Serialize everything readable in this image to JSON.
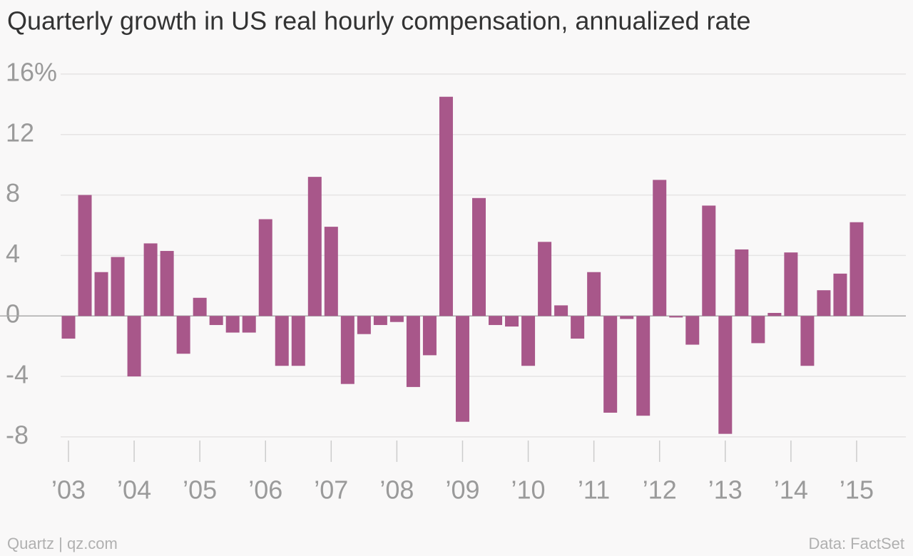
{
  "chart_data": {
    "type": "bar",
    "title": "Quarterly growth in US real hourly compensation, annualized rate",
    "categories": [
      "’03",
      null,
      null,
      null,
      "’04",
      null,
      null,
      null,
      "’05",
      null,
      null,
      null,
      "’06",
      null,
      null,
      null,
      "’07",
      null,
      null,
      null,
      "’08",
      null,
      null,
      null,
      "’09",
      null,
      null,
      null,
      "’10",
      null,
      null,
      null,
      "’11",
      null,
      null,
      null,
      "’12",
      null,
      null,
      null,
      "’13",
      null,
      null,
      null,
      "’14",
      null,
      null,
      null,
      "’15"
    ],
    "values": [
      -1.5,
      8.0,
      2.9,
      3.9,
      -4.0,
      4.8,
      4.3,
      -2.5,
      1.2,
      -0.6,
      -1.1,
      -1.1,
      6.4,
      -3.3,
      -3.3,
      9.2,
      5.9,
      -4.5,
      -1.2,
      -0.6,
      -0.4,
      -4.7,
      -2.6,
      14.5,
      -7.0,
      7.8,
      -0.6,
      -0.7,
      -3.3,
      4.9,
      0.7,
      -1.5,
      2.9,
      -6.4,
      -0.2,
      -6.6,
      9.0,
      -0.1,
      -1.9,
      7.3,
      -7.8,
      4.4,
      -1.8,
      0.2,
      4.2,
      -3.3,
      1.7,
      2.8,
      6.2
    ],
    "color": "#a8578a",
    "ylim": [
      -9.75,
      16.6
    ],
    "yticks": [
      -8,
      -4,
      0,
      4,
      8,
      12,
      {
        "value": 16,
        "label": "16%"
      }
    ],
    "grid": true,
    "source": "Data: FactSet",
    "credit": "Quartz | qz.com"
  }
}
